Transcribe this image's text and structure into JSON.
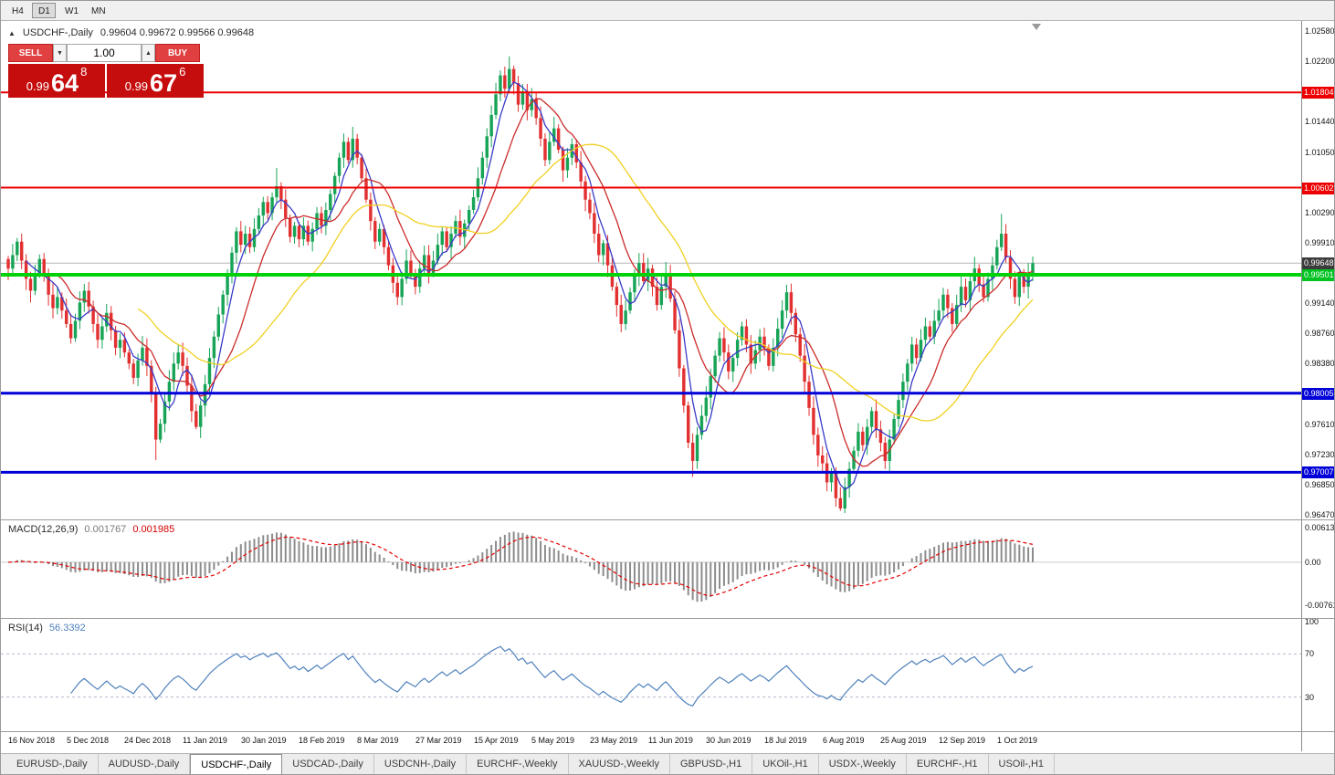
{
  "toolbar": {
    "timeframes": [
      {
        "label": "H4",
        "active": false
      },
      {
        "label": "D1",
        "active": true
      },
      {
        "label": "W1",
        "active": false
      },
      {
        "label": "MN",
        "active": false
      }
    ]
  },
  "chart_header": {
    "collapse_icon": "▲",
    "symbol": "USDCHF-,Daily",
    "ohlc": "0.99604 0.99672 0.99566 0.99648"
  },
  "trade_widget": {
    "sell_label": "SELL",
    "buy_label": "BUY",
    "volume": "1.00",
    "down_arrow": "▼",
    "up_arrow": "▲",
    "sell_price": {
      "small": "0.99",
      "big": "64",
      "sup": "8"
    },
    "buy_price": {
      "small": "0.99",
      "big": "67",
      "sup": "6"
    }
  },
  "price_axis": {
    "labels": [
      {
        "text": "1.02580",
        "price": 1.0258
      },
      {
        "text": "1.02200",
        "price": 1.022
      },
      {
        "text": "1.01440",
        "price": 1.0144
      },
      {
        "text": "1.01050",
        "price": 1.0105
      },
      {
        "text": "1.00290",
        "price": 1.0029
      },
      {
        "text": "0.99910",
        "price": 0.9991
      },
      {
        "text": "0.99140",
        "price": 0.9914
      },
      {
        "text": "0.98760",
        "price": 0.9876
      },
      {
        "text": "0.98380",
        "price": 0.9838
      },
      {
        "text": "0.97610",
        "price": 0.9761
      },
      {
        "text": "0.97230",
        "price": 0.9723
      },
      {
        "text": "0.96850",
        "price": 0.9685
      },
      {
        "text": "0.96470",
        "price": 0.9647
      }
    ],
    "markers": [
      {
        "text": "1.01804",
        "price": 1.01804,
        "color": "#ee0000"
      },
      {
        "text": "1.00602",
        "price": 1.00602,
        "color": "#ee0000"
      },
      {
        "text": "0.99648",
        "price": 0.99648,
        "color": "#3c3c3c"
      },
      {
        "text": "0.99501",
        "price": 0.99501,
        "color": "#00c220"
      },
      {
        "text": "0.98005",
        "price": 0.98005,
        "color": "#0000d8"
      },
      {
        "text": "0.97007",
        "price": 0.97007,
        "color": "#0000d8"
      }
    ]
  },
  "indicators": {
    "macd": {
      "name": "MACD(12,26,9)",
      "main_value": "0.001767",
      "signal_value": "0.001985",
      "axis_labels": [
        {
          "text": "0.00613",
          "value": 0.00613
        },
        {
          "text": "0.00",
          "value": 0
        },
        {
          "text": "-0.00761",
          "value": -0.00761
        }
      ]
    },
    "rsi": {
      "name": "RSI(14)",
      "value": "56.3392",
      "axis_labels": [
        {
          "text": "100",
          "value": 100
        },
        {
          "text": "70",
          "value": 70
        },
        {
          "text": "30",
          "value": 30
        }
      ],
      "levels": [
        70,
        30
      ]
    }
  },
  "x_axis": {
    "labels": [
      "16 Nov 2018",
      "5 Dec 2018",
      "24 Dec 2018",
      "11 Jan 2019",
      "30 Jan 2019",
      "18 Feb 2019",
      "8 Mar 2019",
      "27 Mar 2019",
      "15 Apr 2019",
      "5 May 2019",
      "23 May 2019",
      "11 Jun 2019",
      "30 Jun 2019",
      "18 Jul 2019",
      "6 Aug 2019",
      "25 Aug 2019",
      "12 Sep 2019",
      "1 Oct 2019"
    ]
  },
  "tabs": [
    {
      "label": "EURUSD-,Daily",
      "active": false
    },
    {
      "label": "AUDUSD-,Daily",
      "active": false
    },
    {
      "label": "USDCHF-,Daily",
      "active": true
    },
    {
      "label": "USDCAD-,Daily",
      "active": false
    },
    {
      "label": "USDCNH-,Daily",
      "active": false
    },
    {
      "label": "EURCHF-,Weekly",
      "active": false
    },
    {
      "label": "XAUUSD-,Weekly",
      "active": false
    },
    {
      "label": "GBPUSD-,H1",
      "active": false
    },
    {
      "label": "UKOil-,H1",
      "active": false
    },
    {
      "label": "USDX-,Weekly",
      "active": false
    },
    {
      "label": "EURCHF-,H1",
      "active": false
    },
    {
      "label": "USOil-,H1",
      "active": false
    }
  ],
  "chart_data": {
    "type": "candlestick",
    "symbol": "USDCHF",
    "timeframe": "Daily",
    "bars_per_label": 13,
    "price_axis_top": 1.0266,
    "price_axis_bottom": 0.96435,
    "current_price": 0.99648,
    "closes": [
      0.9958,
      0.9975,
      0.9992,
      0.9968,
      0.9945,
      0.993,
      0.9952,
      0.997,
      0.9948,
      0.9925,
      0.9908,
      0.9922,
      0.9905,
      0.9888,
      0.987,
      0.9892,
      0.9915,
      0.993,
      0.991,
      0.9888,
      0.9868,
      0.9885,
      0.9902,
      0.988,
      0.9858,
      0.9868,
      0.9852,
      0.9838,
      0.982,
      0.9842,
      0.9858,
      0.9835,
      0.98,
      0.9742,
      0.9762,
      0.979,
      0.9815,
      0.9838,
      0.9852,
      0.9835,
      0.981,
      0.9778,
      0.9758,
      0.9785,
      0.9812,
      0.9845,
      0.9872,
      0.99,
      0.9925,
      0.9952,
      0.9978,
      1.0005,
      0.9988,
      1.0002,
      0.9985,
      1.0008,
      1.0025,
      1.0042,
      1.0028,
      1.0048,
      1.0062,
      1.0045,
      1.0022,
      0.9998,
      1.0012,
      0.9995,
      1.0012,
      0.9992,
      1.0008,
      1.0028,
      1.0012,
      1.0032,
      1.0052,
      1.0075,
      1.0098,
      1.0118,
      1.0095,
      1.0122,
      1.0098,
      1.0072,
      1.0045,
      1.0018,
      0.9992,
      1.0008,
      0.9985,
      0.9962,
      0.994,
      0.9922,
      0.9945,
      0.9968,
      0.9952,
      0.9935,
      0.9958,
      0.9975,
      0.9952,
      0.9968,
      0.9988,
      1.0005,
      0.9985,
      1.0002,
      1.0018,
      0.9998,
      1.0015,
      1.0032,
      1.0048,
      1.0072,
      1.0098,
      1.0125,
      1.0152,
      1.0178,
      1.0202,
      1.0185,
      1.021,
      1.0192,
      1.0165,
      1.0182,
      1.0158,
      1.0172,
      1.0148,
      1.0122,
      1.0095,
      1.0118,
      1.0135,
      1.0108,
      1.0082,
      1.0098,
      1.0115,
      1.0092,
      1.0068,
      1.0045,
      1.0028,
      1.0002,
      0.9975,
      0.999,
      0.9962,
      0.9935,
      0.9912,
      0.9888,
      0.9905,
      0.9928,
      0.9948,
      0.9965,
      0.9942,
      0.9958,
      0.9935,
      0.9912,
      0.9935,
      0.9952,
      0.992,
      0.988,
      0.9832,
      0.9785,
      0.9738,
      0.9715,
      0.9748,
      0.9772,
      0.9795,
      0.9822,
      0.9848,
      0.987,
      0.9852,
      0.9828,
      0.9845,
      0.9868,
      0.9885,
      0.9862,
      0.9838,
      0.9855,
      0.9872,
      0.9858,
      0.9835,
      0.9858,
      0.9882,
      0.9905,
      0.9928,
      0.9902,
      0.9875,
      0.9848,
      0.9815,
      0.9782,
      0.9748,
      0.9722,
      0.9712,
      0.9688,
      0.9702,
      0.9668,
      0.9655,
      0.9682,
      0.9705,
      0.9728,
      0.9752,
      0.9735,
      0.9758,
      0.9778,
      0.9755,
      0.9738,
      0.9715,
      0.9742,
      0.9768,
      0.9792,
      0.9815,
      0.9838,
      0.9862,
      0.9845,
      0.9868,
      0.9885,
      0.9872,
      0.9892,
      0.9905,
      0.9925,
      0.9908,
      0.9888,
      0.9912,
      0.9935,
      0.9918,
      0.9942,
      0.9958,
      0.9938,
      0.9922,
      0.9945,
      0.9962,
      0.9985,
      1.0002,
      0.9972,
      0.9945,
      0.9922,
      0.9948,
      0.9935,
      0.9952,
      0.99648
    ],
    "wick_overrides": {
      "33": {
        "low": 0.9716
      },
      "42": {
        "low": 0.9755
      },
      "60": {
        "high": 1.0085
      },
      "77": {
        "high": 1.0137
      },
      "112": {
        "high": 1.0226
      },
      "153": {
        "low": 0.9695
      },
      "186": {
        "low": 0.9652
      },
      "196": {
        "low": 0.9705
      },
      "222": {
        "high": 1.0027
      }
    },
    "horizontal_lines": [
      {
        "price": 1.01804,
        "color": "#ee0000",
        "width": 2
      },
      {
        "price": 1.00602,
        "color": "#ee0000",
        "width": 2
      },
      {
        "price": 0.99501,
        "color": "#00d20a",
        "width": 4
      },
      {
        "price": 0.98005,
        "color": "#0000d8",
        "width": 3
      },
      {
        "price": 0.97007,
        "color": "#0000d8",
        "width": 3
      }
    ],
    "moving_averages": [
      {
        "period": 5,
        "color": "#3a3ac8"
      },
      {
        "period": 12,
        "color": "#cc2b2b"
      },
      {
        "period": 30,
        "color": "#f0d020"
      }
    ],
    "macd": {
      "fast": 12,
      "slow": 26,
      "signal": 9,
      "axis_max": 0.00613,
      "axis_min": -0.00761
    },
    "rsi": {
      "period": 14,
      "levels": [
        70,
        30
      ]
    },
    "bull_color": "#17a457",
    "bear_color": "#e23030"
  }
}
